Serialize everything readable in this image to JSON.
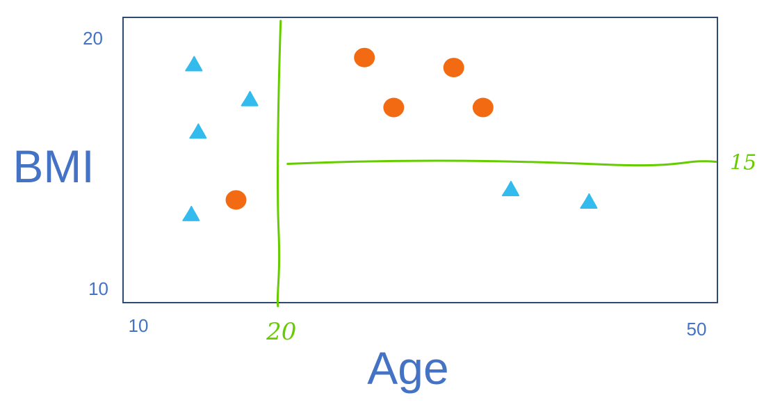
{
  "chart_data": {
    "type": "scatter",
    "title": "",
    "xlabel": "Age",
    "ylabel": "BMI",
    "xlim": [
      10,
      50
    ],
    "ylim": [
      10,
      20
    ],
    "x_ticks": [
      "10",
      "50"
    ],
    "y_ticks": [
      "10",
      "20"
    ],
    "grid": false,
    "legend": "none",
    "series": [
      {
        "marker": "triangle",
        "color": "#33BBEE",
        "points": [
          {
            "x": 14,
            "y": 18.9
          },
          {
            "x": 18,
            "y": 17.5
          },
          {
            "x": 14.3,
            "y": 16.2
          },
          {
            "x": 13.8,
            "y": 12.9
          },
          {
            "x": 36.7,
            "y": 13.9
          },
          {
            "x": 42.3,
            "y": 13.4
          }
        ]
      },
      {
        "marker": "circle",
        "color": "#F26B12",
        "points": [
          {
            "x": 17,
            "y": 13.5
          },
          {
            "x": 26.2,
            "y": 19.2
          },
          {
            "x": 28.3,
            "y": 17.2
          },
          {
            "x": 32.6,
            "y": 18.8
          },
          {
            "x": 34.7,
            "y": 17.2
          }
        ]
      }
    ],
    "split_lines": {
      "color": "#66CC00",
      "vertical": {
        "x": 20,
        "label": "20"
      },
      "horizontal": {
        "y": 15,
        "x_from": 20,
        "label": "15"
      }
    }
  }
}
